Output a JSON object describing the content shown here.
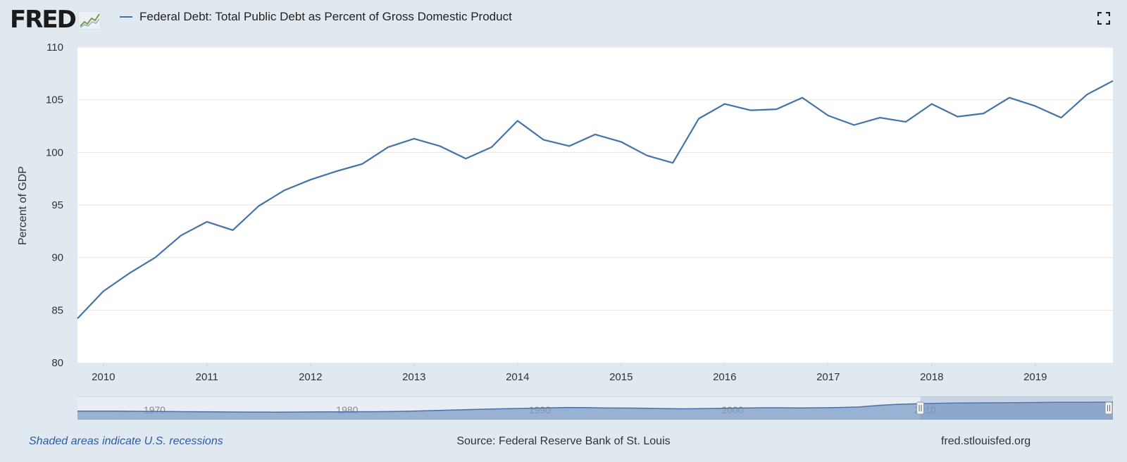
{
  "header": {
    "logo_text": "FRED",
    "legend_label": "Federal Debt: Total Public Debt as Percent of Gross Domestic Product",
    "series_color": "#4572a7"
  },
  "footer": {
    "recession_note": "Shaded areas indicate U.S. recessions",
    "source": "Source: Federal Reserve Bank of St. Louis",
    "url": "fred.stlouisfed.org"
  },
  "chart_data": {
    "type": "line",
    "title": "Federal Debt: Total Public Debt as Percent of Gross Domestic Product",
    "ylabel": "Percent of GDP",
    "xlabel": "",
    "ylim": [
      80,
      110
    ],
    "yticks": [
      80,
      85,
      90,
      95,
      100,
      105,
      110
    ],
    "xlim": [
      2009.75,
      2019.75
    ],
    "xticks": [
      2010,
      2011,
      2012,
      2013,
      2014,
      2015,
      2016,
      2017,
      2018,
      2019
    ],
    "grid": true,
    "legend": "top-left",
    "series": [
      {
        "name": "Federal Debt: Total Public Debt as Percent of Gross Domestic Product",
        "x": [
          2009.75,
          2010.0,
          2010.25,
          2010.5,
          2010.75,
          2011.0,
          2011.25,
          2011.5,
          2011.75,
          2012.0,
          2012.25,
          2012.5,
          2012.75,
          2013.0,
          2013.25,
          2013.5,
          2013.75,
          2014.0,
          2014.25,
          2014.5,
          2014.75,
          2015.0,
          2015.25,
          2015.5,
          2015.75,
          2016.0,
          2016.25,
          2016.5,
          2016.75,
          2017.0,
          2017.25,
          2017.5,
          2017.75,
          2018.0,
          2018.25,
          2018.5,
          2018.75,
          2019.0,
          2019.25,
          2019.5,
          2019.75
        ],
        "values": [
          84.2,
          86.8,
          88.5,
          90.0,
          92.1,
          93.4,
          92.6,
          94.9,
          96.4,
          97.4,
          98.2,
          98.9,
          100.5,
          101.3,
          100.6,
          99.4,
          100.5,
          103.0,
          101.2,
          100.6,
          101.7,
          101.0,
          99.7,
          99.0,
          103.2,
          104.6,
          104.0,
          104.1,
          105.2,
          103.5,
          102.6,
          103.3,
          102.9,
          104.6,
          103.4,
          103.7,
          105.2,
          104.4,
          103.3,
          105.5,
          106.8
        ]
      }
    ],
    "navigator": {
      "labels": [
        "1970",
        "1980",
        "1990",
        "2000",
        "2010"
      ],
      "start_year": 1966,
      "end_year": 2019.75,
      "selected_range": [
        2009.75,
        2019.75
      ],
      "series_values": [
        39,
        39,
        38.5,
        37.5,
        36,
        35,
        34,
        33,
        32,
        31.5,
        31,
        31.5,
        32.5,
        33,
        33.5,
        34,
        35,
        38,
        42,
        46,
        50,
        54,
        57,
        60,
        63,
        66,
        65,
        63,
        62,
        61,
        58,
        56,
        58,
        60,
        62,
        64,
        64,
        63,
        64,
        66,
        70,
        82,
        90,
        95,
        98,
        100,
        101,
        102,
        103,
        104,
        105,
        105,
        106,
        106.8
      ]
    }
  }
}
